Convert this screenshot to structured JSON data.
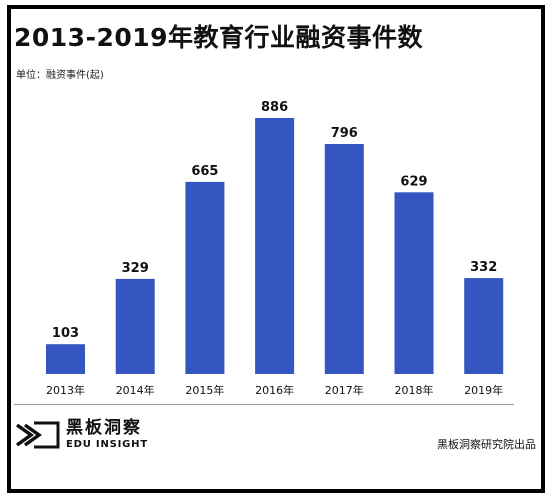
{
  "title": "2013-2019年教育行业融资事件数",
  "unit_label": "单位：融资事件(起)",
  "logo": {
    "name_cn": "黑板洞察",
    "name_en": "EDU INSIGHT"
  },
  "source": "黑板洞察研究院出品",
  "colors": {
    "bar": "#3556c0",
    "text": "#111111",
    "divider": "#9a9a9a"
  },
  "chart_data": {
    "type": "bar",
    "title": "2013-2019年教育行业融资事件数",
    "ylabel": "单位：融资事件(起)",
    "categories": [
      "2013年",
      "2014年",
      "2015年",
      "2016年",
      "2017年",
      "2018年",
      "2019年"
    ],
    "values": [
      103,
      329,
      665,
      886,
      796,
      629,
      332
    ],
    "ylim": [
      0,
      886
    ],
    "grid": false,
    "legend": "none"
  }
}
